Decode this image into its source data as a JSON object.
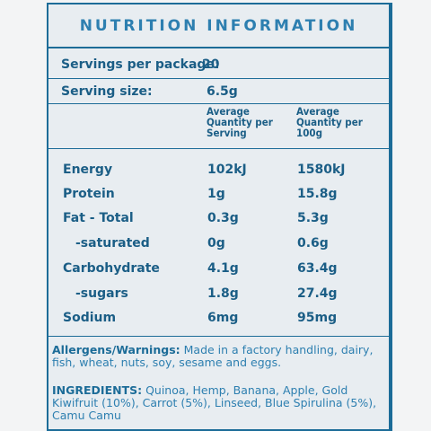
{
  "title": "NUTRITION INFORMATION",
  "servings": {
    "per_package_label": "Servings per package:",
    "per_package_value": "20",
    "size_label": "Serving size:",
    "size_value": "6.5g"
  },
  "columns": {
    "per_serving": "Average Quantity per Serving",
    "per_100g": "Average Quantity per 100g"
  },
  "nutrients": [
    {
      "name": "Energy",
      "per_serving": "102kJ",
      "per_100g": "1580kJ"
    },
    {
      "name": "Protein",
      "per_serving": "1g",
      "per_100g": "15.8g"
    },
    {
      "name": "Fat - Total",
      "per_serving": "0.3g",
      "per_100g": "5.3g"
    },
    {
      "name": "-saturated",
      "per_serving": "0g",
      "per_100g": "0.6g"
    },
    {
      "name": "Carbohydrate",
      "per_serving": "4.1g",
      "per_100g": "63.4g"
    },
    {
      "name": "-sugars",
      "per_serving": "1.8g",
      "per_100g": "27.4g"
    },
    {
      "name": "Sodium",
      "per_serving": "6mg",
      "per_100g": "95mg"
    }
  ],
  "allergens": {
    "label": "Allergens/Warnings:",
    "text": "Made in a factory handling, dairy, fish, wheat, nuts, soy, sesame and eggs."
  },
  "ingredients": {
    "label": "INGREDIENTS:",
    "text": "Quinoa, Hemp, Banana, Apple, Gold Kiwifruit (10%), Carrot (5%), Linseed, Blue Spirulina (5%), Camu Camu"
  },
  "colors": {
    "border": "#1c6c98",
    "text_dark": "#1b5e86",
    "text_light": "#2d7fb0",
    "panel_bg": "#e8edf1",
    "page_bg": "#f3f4f5"
  }
}
